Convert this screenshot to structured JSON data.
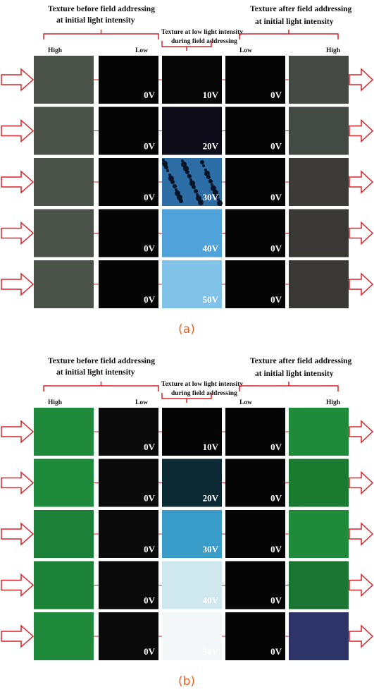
{
  "panels": [
    {
      "label": "(a)",
      "left_header": [
        "Texture before field addressing",
        "at initial light intensity"
      ],
      "middle_header": [
        "Texture at low light intensity",
        "during field addressing"
      ],
      "right_header": [
        "Texture after field addressing",
        "at initial light intensity"
      ],
      "column_labels": [
        "High",
        "Low",
        "Low",
        "High"
      ],
      "rows": [
        {
          "left_voltage": "0V",
          "middle_voltage": "10V",
          "right_voltage": "0V"
        },
        {
          "left_voltage": "0V",
          "middle_voltage": "20V",
          "right_voltage": "0V"
        },
        {
          "left_voltage": "0V",
          "middle_voltage": "30V",
          "right_voltage": "0V"
        },
        {
          "left_voltage": "0V",
          "middle_voltage": "40V",
          "right_voltage": "0V"
        },
        {
          "left_voltage": "0V",
          "middle_voltage": "50V",
          "right_voltage": "0V"
        }
      ]
    },
    {
      "label": "(b)",
      "left_header": [
        "Texture before field addressing",
        "at initial light intensity"
      ],
      "middle_header": [
        "Texture at low light intensity",
        "during field addressing"
      ],
      "right_header": [
        "Texture after field addressing",
        "at initial light intensity"
      ],
      "column_labels": [
        "High",
        "Low",
        "Low",
        "High"
      ],
      "rows": [
        {
          "left_voltage": "0V",
          "middle_voltage": "10V",
          "right_voltage": "0V"
        },
        {
          "left_voltage": "0V",
          "middle_voltage": "20V",
          "right_voltage": "0V"
        },
        {
          "left_voltage": "0V",
          "middle_voltage": "30V",
          "right_voltage": "0V"
        },
        {
          "left_voltage": "0V",
          "middle_voltage": "40V",
          "right_voltage": "0V"
        },
        {
          "left_voltage": "0V",
          "middle_voltage": "50V",
          "right_voltage": "0V"
        }
      ]
    }
  ]
}
